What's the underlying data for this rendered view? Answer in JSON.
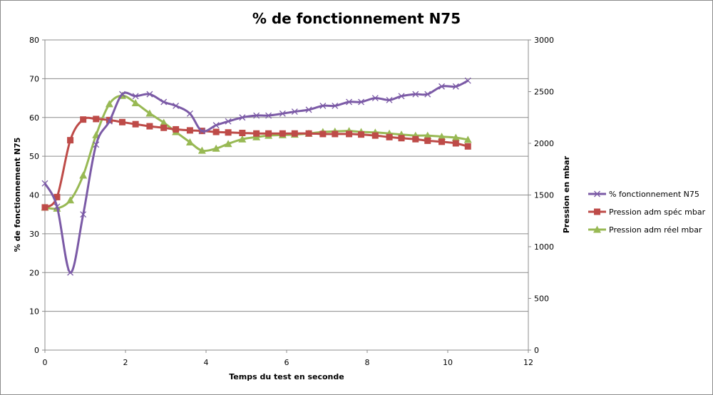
{
  "chart_data": {
    "type": "line",
    "title": "% de fonctionnement N75",
    "xlabel": "Temps du test en seconde",
    "ylabel": "% de fonctionnement N75",
    "y2label": "Pression en mbar",
    "xlim": [
      0,
      12
    ],
    "ylim": [
      0,
      80
    ],
    "y2lim": [
      0,
      3000
    ],
    "xticks": [
      "0",
      "2",
      "4",
      "6",
      "8",
      "10",
      "12"
    ],
    "yticks": [
      "0",
      "10",
      "20",
      "30",
      "40",
      "50",
      "60",
      "70",
      "80"
    ],
    "y2ticks": [
      "0",
      "500",
      "1000",
      "1500",
      "2000",
      "2500",
      "3000"
    ],
    "grid": "horizontal",
    "legend_position": "right",
    "series": [
      {
        "name": "% fonctionnement N75",
        "axis": "left",
        "color": "#7b5aa6",
        "marker": "x",
        "x": [
          0,
          0.3,
          0.63,
          0.95,
          1.27,
          1.6,
          1.92,
          2.25,
          2.6,
          2.95,
          3.25,
          3.6,
          3.9,
          4.25,
          4.55,
          4.9,
          5.25,
          5.55,
          5.9,
          6.2,
          6.55,
          6.9,
          7.2,
          7.55,
          7.85,
          8.2,
          8.55,
          8.85,
          9.2,
          9.5,
          9.85,
          10.2,
          10.5
        ],
        "values": [
          43,
          37,
          20,
          35,
          53,
          59,
          66,
          65.5,
          66,
          64,
          63,
          61,
          56.5,
          58,
          59,
          60,
          60.5,
          60.5,
          61,
          61.5,
          62,
          63,
          63,
          64,
          64,
          65,
          64.5,
          65.5,
          66,
          66,
          68,
          68,
          69.5
        ]
      },
      {
        "name": "Pression adm spéc mbar",
        "axis": "right",
        "color": "#be4b48",
        "marker": "square",
        "x": [
          0,
          0.3,
          0.63,
          0.95,
          1.27,
          1.6,
          1.92,
          2.25,
          2.6,
          2.95,
          3.25,
          3.6,
          3.9,
          4.25,
          4.55,
          4.9,
          5.25,
          5.55,
          5.9,
          6.2,
          6.55,
          6.9,
          7.2,
          7.55,
          7.85,
          8.2,
          8.55,
          8.85,
          9.2,
          9.5,
          9.85,
          10.2,
          10.5
        ],
        "values": [
          1380,
          1480,
          2030,
          2230,
          2235,
          2225,
          2205,
          2185,
          2165,
          2150,
          2135,
          2125,
          2120,
          2110,
          2105,
          2100,
          2095,
          2095,
          2095,
          2095,
          2095,
          2090,
          2090,
          2090,
          2085,
          2075,
          2060,
          2050,
          2040,
          2025,
          2015,
          2000,
          1970
        ]
      },
      {
        "name": "Pression adm réel mbar",
        "axis": "right",
        "color": "#98b954",
        "marker": "triangle",
        "x": [
          0,
          0.3,
          0.63,
          0.95,
          1.27,
          1.6,
          1.92,
          2.25,
          2.6,
          2.95,
          3.25,
          3.6,
          3.9,
          4.25,
          4.55,
          4.9,
          5.25,
          5.55,
          5.9,
          6.2,
          6.55,
          6.9,
          7.2,
          7.55,
          7.85,
          8.2,
          8.55,
          8.85,
          9.2,
          9.5,
          9.85,
          10.2,
          10.5
        ],
        "values": [
          1380,
          1370,
          1450,
          1690,
          2080,
          2380,
          2460,
          2390,
          2290,
          2200,
          2110,
          2010,
          1930,
          1950,
          1995,
          2040,
          2060,
          2075,
          2080,
          2085,
          2095,
          2110,
          2115,
          2120,
          2110,
          2105,
          2095,
          2085,
          2075,
          2075,
          2065,
          2055,
          2035
        ]
      }
    ]
  }
}
